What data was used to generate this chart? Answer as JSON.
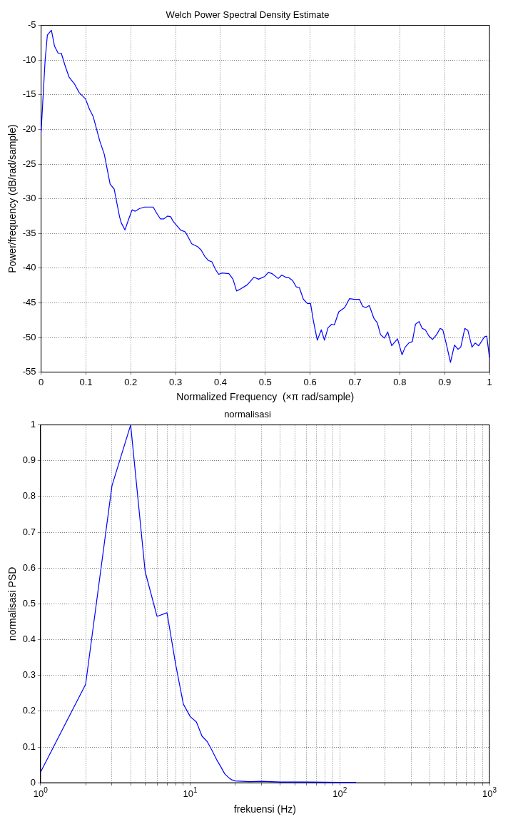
{
  "chart_data": [
    {
      "type": "line",
      "title": "Welch Power Spectral Density Estimate",
      "xlabel": "Normalized Frequency  (×π rad/sample)",
      "ylabel": "Power/frequency (dB/rad/sample)",
      "series": [
        {
          "color": "#0000ff",
          "x": [
            0,
            0.009,
            0.014,
            0.023,
            0.03,
            0.038,
            0.045,
            0.053,
            0.062,
            0.069,
            0.075,
            0.085,
            0.099,
            0.108,
            0.116,
            0.131,
            0.141,
            0.154,
            0.163,
            0.175,
            0.179,
            0.187,
            0.195,
            0.203,
            0.21,
            0.22,
            0.231,
            0.25,
            0.258,
            0.266,
            0.274,
            0.282,
            0.289,
            0.295,
            0.311,
            0.322,
            0.336,
            0.349,
            0.357,
            0.365,
            0.373,
            0.381,
            0.389,
            0.396,
            0.404,
            0.419,
            0.428,
            0.436,
            0.445,
            0.46,
            0.475,
            0.485,
            0.499,
            0.507,
            0.515,
            0.529,
            0.537,
            0.545,
            0.553,
            0.561,
            0.569,
            0.576,
            0.585,
            0.594,
            0.601,
            0.607,
            0.616,
            0.625,
            0.632,
            0.64,
            0.648,
            0.654,
            0.664,
            0.677,
            0.688,
            0.699,
            0.71,
            0.717,
            0.724,
            0.732,
            0.742,
            0.75,
            0.757,
            0.766,
            0.773,
            0.782,
            0.795,
            0.805,
            0.812,
            0.82,
            0.828,
            0.835,
            0.843,
            0.85,
            0.857,
            0.865,
            0.873,
            0.882,
            0.89,
            0.896,
            0.904,
            0.913,
            0.922,
            0.93,
            0.936,
            0.945,
            0.952,
            0.961,
            0.968,
            0.976,
            0.989,
            0.994,
            1.0
          ],
          "values": [
            -20.4,
            -10,
            -6.4,
            -5.7,
            -8.0,
            -9.0,
            -9.0,
            -10.7,
            -12.4,
            -13.0,
            -13.5,
            -14.7,
            -15.6,
            -17.1,
            -18.1,
            -21.7,
            -23.6,
            -27.9,
            -28.6,
            -32.6,
            -33.5,
            -34.5,
            -33.0,
            -31.6,
            -31.8,
            -31.4,
            -31.2,
            -31.2,
            -32.1,
            -32.9,
            -32.9,
            -32.5,
            -32.6,
            -33.3,
            -34.5,
            -34.8,
            -36.5,
            -36.9,
            -37.4,
            -38.3,
            -38.9,
            -39.1,
            -40.2,
            -40.9,
            -40.7,
            -40.8,
            -41.6,
            -43.3,
            -43.0,
            -42.4,
            -41.3,
            -41.6,
            -41.2,
            -40.6,
            -40.8,
            -41.5,
            -41.0,
            -41.3,
            -41.4,
            -41.8,
            -42.7,
            -42.8,
            -44.5,
            -45.1,
            -45.1,
            -47.5,
            -50.4,
            -48.9,
            -50.4,
            -48.6,
            -48.1,
            -48.2,
            -46.3,
            -45.7,
            -44.4,
            -44.5,
            -44.5,
            -45.5,
            -45.7,
            -45.4,
            -47.2,
            -47.9,
            -49.6,
            -50.1,
            -49.2,
            -51.2,
            -50.2,
            -52.5,
            -51.4,
            -50.8,
            -50.6,
            -48.1,
            -47.7,
            -48.7,
            -48.9,
            -49.8,
            -50.3,
            -49.6,
            -48.7,
            -48.9,
            -51.0,
            -53.6,
            -51.1,
            -51.7,
            -51.4,
            -48.7,
            -49.0,
            -51.4,
            -50.8,
            -51.2,
            -49.9,
            -49.8,
            -52.9
          ]
        }
      ],
      "xlim": [
        0,
        1
      ],
      "xticks": [
        0,
        0.1,
        0.2,
        0.3,
        0.4,
        0.5,
        0.6,
        0.7,
        0.8,
        0.9,
        1
      ],
      "ylim": [
        -55,
        -5
      ],
      "yticks": [
        -55,
        -50,
        -45,
        -40,
        -35,
        -30,
        -25,
        -20,
        -15,
        -10,
        -5
      ],
      "grid": true
    },
    {
      "type": "line",
      "title": "normalisasi",
      "xlabel": "frekuensi (Hz)",
      "ylabel": "normalisasi PSD",
      "log": "x",
      "series": [
        {
          "color": "#0000ff",
          "x": [
            1,
            2,
            3,
            4,
            5,
            6,
            7,
            8,
            9,
            10,
            11,
            12,
            13,
            14,
            15,
            16,
            17,
            18,
            19,
            20,
            25,
            30,
            40,
            60,
            100,
            128
          ],
          "values": [
            0.03,
            0.275,
            0.83,
            1.0,
            0.59,
            0.465,
            0.475,
            0.33,
            0.22,
            0.185,
            0.17,
            0.13,
            0.115,
            0.09,
            0.065,
            0.045,
            0.025,
            0.015,
            0.008,
            0.005,
            0.003,
            0.004,
            0.002,
            0.002,
            0.001,
            0.001
          ]
        }
      ],
      "xlim": [
        1,
        1000
      ],
      "xticks": [
        {
          "value": 1,
          "label": "10$^{0}$"
        },
        {
          "value": 2,
          "label": null
        },
        {
          "value": 3,
          "label": null
        },
        {
          "value": 4,
          "label": null
        },
        {
          "value": 5,
          "label": null
        },
        {
          "value": 6,
          "label": null
        },
        {
          "value": 7,
          "label": null
        },
        {
          "value": 8,
          "label": null
        },
        {
          "value": 9,
          "label": null
        },
        {
          "value": 10,
          "label": "10$^{1}$"
        },
        {
          "value": 20,
          "label": null
        },
        {
          "value": 30,
          "label": null
        },
        {
          "value": 40,
          "label": null
        },
        {
          "value": 50,
          "label": null
        },
        {
          "value": 60,
          "label": null
        },
        {
          "value": 70,
          "label": null
        },
        {
          "value": 80,
          "label": null
        },
        {
          "value": 90,
          "label": null
        },
        {
          "value": 100,
          "label": "10$^{2}$"
        },
        {
          "value": 200,
          "label": null
        },
        {
          "value": 300,
          "label": null
        },
        {
          "value": 400,
          "label": null
        },
        {
          "value": 500,
          "label": null
        },
        {
          "value": 600,
          "label": null
        },
        {
          "value": 700,
          "label": null
        },
        {
          "value": 800,
          "label": null
        },
        {
          "value": 900,
          "label": null
        },
        {
          "value": 1000,
          "label": "10$^{3}$"
        }
      ],
      "ylim": [
        0,
        1
      ],
      "yticks": [
        0,
        0.1,
        0.2,
        0.3,
        0.4,
        0.5,
        0.6,
        0.7,
        0.8,
        0.9,
        1
      ],
      "grid": true
    }
  ]
}
